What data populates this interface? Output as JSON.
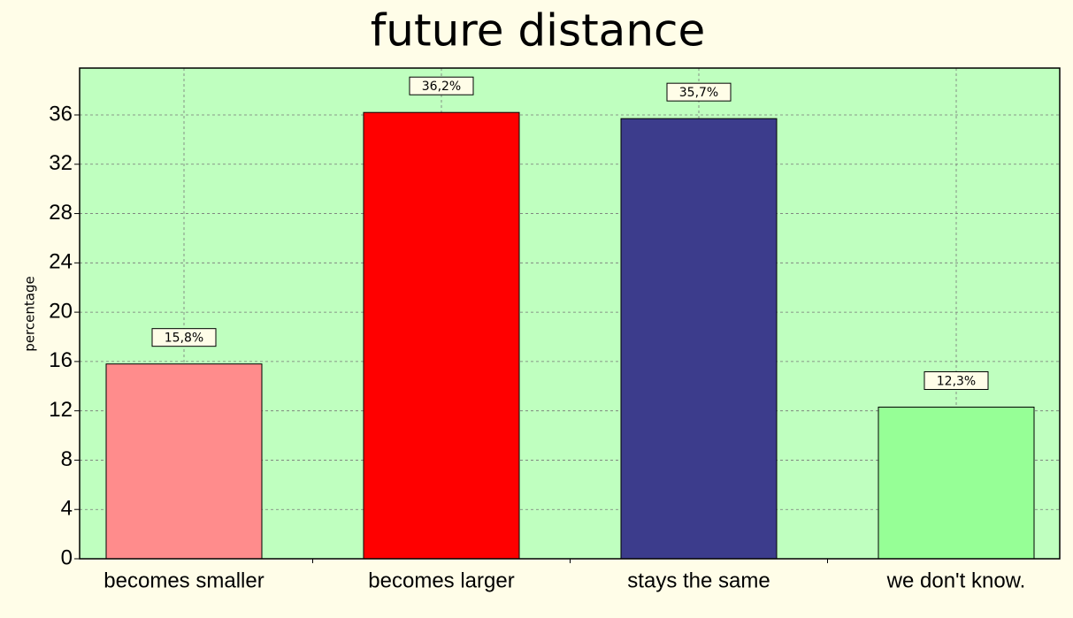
{
  "chart_data": {
    "type": "bar",
    "title": "future distance",
    "y_label": "percentage",
    "categories": [
      "becomes smaller",
      "becomes larger",
      "stays the same",
      "we don't know."
    ],
    "values": [
      15.8,
      36.2,
      35.7,
      12.3
    ],
    "value_labels": [
      "15,8%",
      "36,2%",
      "35,7%",
      "12,3%"
    ],
    "colors": [
      "#ff8c8c",
      "#ff0000",
      "#3c3c8c",
      "#96ff96"
    ],
    "ylim": [
      0,
      39.8
    ],
    "yticks": [
      0,
      4,
      8,
      12,
      16,
      20,
      24,
      28,
      32,
      36
    ],
    "grid": true
  }
}
